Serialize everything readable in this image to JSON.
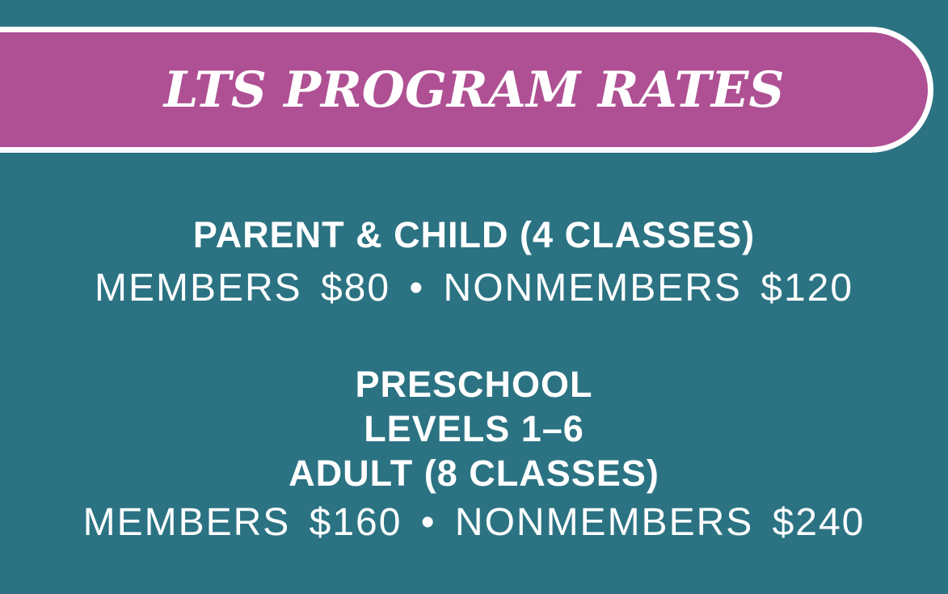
{
  "colors": {
    "background": "#2B7383",
    "banner_fill": "#AF5094",
    "banner_border": "#FFFFFF",
    "text": "#FFFFFF"
  },
  "banner": {
    "title": "LTS PROGRAM RATES"
  },
  "sections": [
    {
      "heading_lines": [
        "PARENT & CHILD (4 CLASSES)"
      ],
      "rates": "MEMBERS $80 • NONMEMBERS $120"
    },
    {
      "heading_lines": [
        "PRESCHOOL",
        "LEVELS 1–6",
        "ADULT (8 CLASSES)"
      ],
      "rates": "MEMBERS $160 • NONMEMBERS $240"
    }
  ]
}
